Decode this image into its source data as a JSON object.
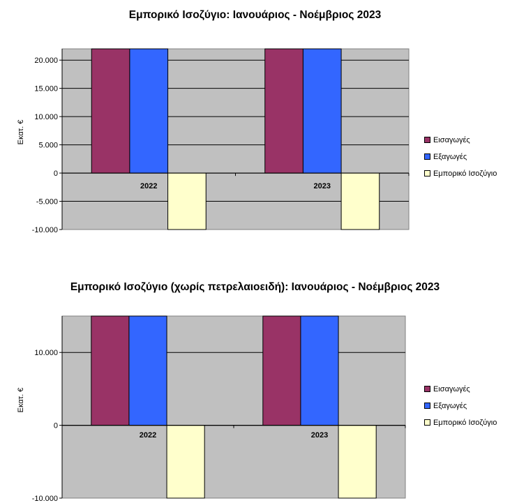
{
  "charts": [
    {
      "title": "Εμπορικό Ισοζύγιο: Ιανουάριος - Νοέμβριος 2023",
      "ylabel": "Εκατ. €",
      "legend": [
        "Εισαγωγές",
        "Εξαγωγές",
        "Εμπορικό Ισοζύγιο"
      ],
      "categories": [
        "2022",
        "2023"
      ],
      "yticks": [
        "20.000",
        "15.000",
        "10.000",
        "5.000",
        "0",
        "-5.000",
        "-10.000"
      ]
    },
    {
      "title": "Εμπορικό Ισοζύγιο (χωρίς πετρελαιοειδή): Ιανουάριος - Νοέμβριος 2023",
      "ylabel": "Εκατ. €",
      "legend": [
        "Εισαγωγές",
        "Εξαγωγές",
        "Εμπορικό Ισοζύγιο"
      ],
      "categories": [
        "2022",
        "2023"
      ],
      "yticks": [
        "10.000",
        "0",
        "-10.000"
      ]
    }
  ],
  "chart_data": [
    {
      "type": "bar",
      "title": "Εμπορικό Ισοζύγιο: Ιανουάριος - Νοέμβριος 2023",
      "ylabel": "Εκατ. €",
      "categories": [
        "2022",
        "2023"
      ],
      "series": [
        {
          "name": "Εισαγωγές",
          "color": "#993366",
          "values": [
            22000,
            22000
          ]
        },
        {
          "name": "Εξαγωγές",
          "color": "#3366FF",
          "values": [
            22000,
            22000
          ]
        },
        {
          "name": "Εμπορικό Ισοζύγιο",
          "color": "#FFFFCC",
          "values": [
            -10000,
            -10000
          ]
        }
      ],
      "ylim": [
        -10000,
        22000
      ],
      "yticks": [
        20000,
        15000,
        10000,
        5000,
        0,
        -5000,
        -10000
      ],
      "grid": true,
      "legend": "right",
      "plot_background": "#C0C0C0"
    },
    {
      "type": "bar",
      "title": "Εμπορικό Ισοζύγιο (χωρίς πετρελαιοειδή): Ιανουάριος - Νοέμβριος 2023",
      "ylabel": "Εκατ. €",
      "categories": [
        "2022",
        "2023"
      ],
      "series": [
        {
          "name": "Εισαγωγές",
          "color": "#993366",
          "values": [
            15000,
            15000
          ]
        },
        {
          "name": "Εξαγωγές",
          "color": "#3366FF",
          "values": [
            15000,
            15000
          ]
        },
        {
          "name": "Εμπορικό Ισοζύγιο",
          "color": "#FFFFCC",
          "values": [
            -10000,
            -10000
          ]
        }
      ],
      "ylim": [
        -10000,
        15000
      ],
      "yticks": [
        10000,
        0,
        -10000
      ],
      "grid": true,
      "legend": "right",
      "plot_background": "#C0C0C0"
    }
  ]
}
